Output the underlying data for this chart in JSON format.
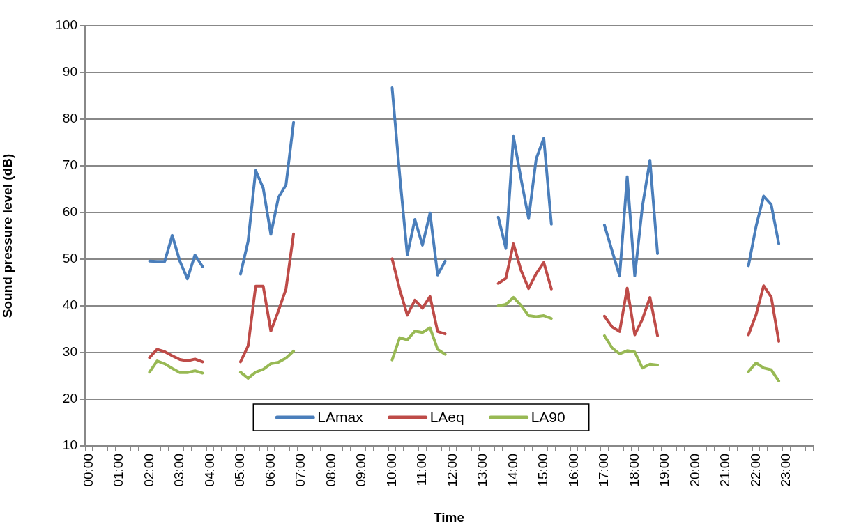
{
  "chart_data": {
    "type": "line",
    "xlabel": "Time",
    "ylabel": "Sound pressure level (dB)",
    "categories": [
      "00:00",
      null,
      null,
      null,
      "01:00",
      null,
      null,
      null,
      "02:00",
      null,
      null,
      null,
      "03:00",
      null,
      null,
      null,
      "04:00",
      null,
      null,
      null,
      "05:00",
      null,
      null,
      null,
      "06:00",
      null,
      null,
      null,
      "07:00",
      null,
      null,
      null,
      "08:00",
      null,
      null,
      null,
      "09:00",
      null,
      null,
      null,
      "10:00",
      null,
      null,
      null,
      "11:00",
      null,
      null,
      null,
      "12:00",
      null,
      null,
      null,
      "13:00",
      null,
      null,
      null,
      "14:00",
      null,
      null,
      null,
      "15:00",
      null,
      null,
      null,
      "16:00",
      null,
      null,
      null,
      "17:00",
      null,
      null,
      null,
      "18:00",
      null,
      null,
      null,
      "19:00",
      null,
      null,
      null,
      "20:00",
      null,
      null,
      null,
      "21:00",
      null,
      null,
      null,
      "22:00",
      null,
      null,
      null,
      "23:00",
      null,
      null,
      null
    ],
    "series": [
      {
        "name": "LAmax",
        "color": "#4a7ebb",
        "values": [
          null,
          null,
          null,
          null,
          null,
          null,
          null,
          null,
          49.6,
          49.5,
          49.5,
          55.1,
          49.6,
          45.8,
          50.9,
          48.4,
          null,
          null,
          null,
          null,
          46.8,
          53.8,
          69.0,
          65.2,
          55.3,
          63.2,
          65.9,
          79.3,
          null,
          null,
          null,
          null,
          null,
          null,
          null,
          null,
          null,
          null,
          null,
          null,
          86.7,
          68.0,
          50.9,
          58.5,
          53.0,
          59.9,
          46.6,
          49.6,
          null,
          null,
          null,
          null,
          null,
          null,
          59.0,
          52.3,
          76.3,
          67.2,
          58.7,
          71.5,
          75.9,
          57.5,
          null,
          null,
          null,
          null,
          null,
          null,
          57.3,
          51.8,
          46.4,
          67.7,
          46.4,
          61.2,
          71.2,
          51.2,
          null,
          null,
          null,
          null,
          null,
          null,
          null,
          null,
          null,
          null,
          null,
          48.6,
          57.0,
          63.5,
          61.7,
          53.3,
          null,
          null,
          null,
          null
        ]
      },
      {
        "name": "LAeq",
        "color": "#be4b48",
        "values": [
          null,
          null,
          null,
          null,
          null,
          null,
          null,
          null,
          28.9,
          30.7,
          30.2,
          29.3,
          28.5,
          28.2,
          28.6,
          28.0,
          null,
          null,
          null,
          null,
          28.0,
          31.4,
          44.2,
          44.2,
          34.6,
          38.9,
          43.6,
          55.4,
          null,
          null,
          null,
          null,
          null,
          null,
          null,
          null,
          null,
          null,
          null,
          null,
          50.1,
          43.5,
          38.0,
          41.2,
          39.5,
          42.0,
          34.5,
          34.0,
          null,
          null,
          null,
          null,
          null,
          null,
          44.8,
          45.9,
          53.3,
          47.6,
          43.7,
          46.9,
          49.3,
          43.6,
          null,
          null,
          null,
          null,
          null,
          null,
          37.8,
          35.5,
          34.5,
          43.8,
          33.8,
          37.1,
          41.8,
          33.6,
          null,
          null,
          null,
          null,
          null,
          null,
          null,
          null,
          null,
          null,
          null,
          33.8,
          38.1,
          44.3,
          41.9,
          32.4,
          null,
          null,
          null,
          null
        ]
      },
      {
        "name": "LA90",
        "color": "#98b954",
        "values": [
          null,
          null,
          null,
          null,
          null,
          null,
          null,
          null,
          25.8,
          28.2,
          27.6,
          26.6,
          25.7,
          25.7,
          26.1,
          25.6,
          null,
          null,
          null,
          null,
          25.8,
          24.5,
          25.8,
          26.4,
          27.6,
          27.9,
          28.8,
          30.3,
          null,
          null,
          null,
          null,
          null,
          null,
          null,
          null,
          null,
          null,
          null,
          null,
          28.4,
          33.2,
          32.7,
          34.6,
          34.3,
          35.3,
          30.7,
          29.6,
          null,
          null,
          null,
          null,
          null,
          null,
          40.0,
          40.3,
          41.8,
          40.1,
          37.9,
          37.7,
          37.9,
          37.3,
          null,
          null,
          null,
          null,
          null,
          null,
          33.6,
          31.0,
          29.7,
          30.4,
          30.1,
          26.7,
          27.5,
          27.3,
          null,
          null,
          null,
          null,
          null,
          null,
          null,
          null,
          null,
          null,
          null,
          25.9,
          27.8,
          26.7,
          26.3,
          23.9,
          null,
          null,
          null,
          null
        ]
      }
    ],
    "ylim": [
      10,
      100
    ],
    "yticks": [
      10,
      20,
      30,
      40,
      50,
      60,
      70,
      80,
      90,
      100
    ],
    "grid": "y",
    "legend": "bottom",
    "marker": "none",
    "line_style": "solid"
  }
}
